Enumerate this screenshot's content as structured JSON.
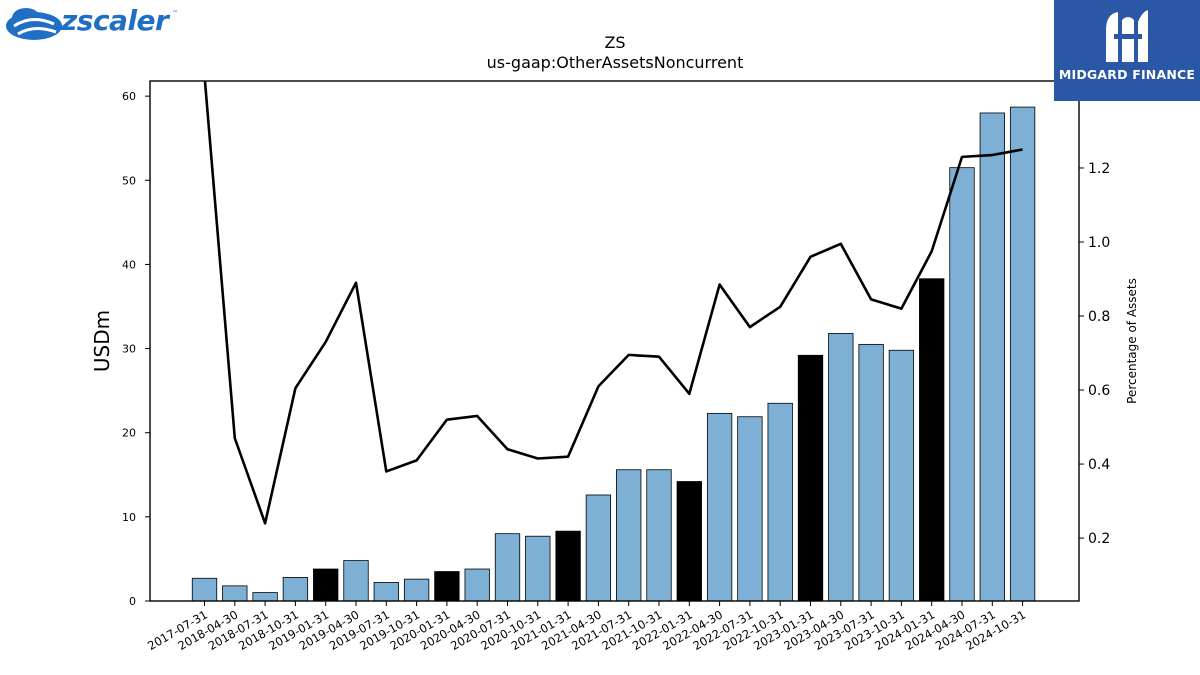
{
  "brand_left": {
    "name": "zscaler",
    "tm": "™",
    "icon": "zscaler-cloud-logo-icon",
    "color": "#1f6fc5"
  },
  "brand_right": {
    "name": "MIDGARD FINANCE",
    "icon": "midgard-finance-logo-icon",
    "background": "#2b57a7"
  },
  "chart_data": {
    "type": "bar",
    "title": "ZS",
    "subtitle": "us-gaap:OtherAssetsNoncurrent",
    "ylabel": "USDm",
    "y2label": "Percentage of Assets",
    "ylim": [
      0,
      61.8
    ],
    "y2lim": [
      0.03,
      1.435
    ],
    "yticks": [
      0,
      10,
      20,
      30,
      40,
      50,
      60
    ],
    "y2ticks": [
      0.2,
      0.4,
      0.6,
      0.8,
      1.0,
      1.2,
      1.4
    ],
    "y2tick_labels": [
      "0.2",
      "0.4",
      "0.6",
      "0.8",
      "1.0",
      "1.2",
      "1.4"
    ],
    "categories": [
      "2017-07-31",
      "2018-04-30",
      "2018-07-31",
      "2018-10-31",
      "2019-01-31",
      "2019-04-30",
      "2019-07-31",
      "2019-10-31",
      "2020-01-31",
      "2020-04-30",
      "2020-07-31",
      "2020-10-31",
      "2021-01-31",
      "2021-04-30",
      "2021-07-31",
      "2021-10-31",
      "2022-01-31",
      "2022-04-30",
      "2022-07-31",
      "2022-10-31",
      "2023-01-31",
      "2023-04-30",
      "2023-07-31",
      "2023-10-31",
      "2024-01-31",
      "2024-04-30",
      "2024-07-31",
      "2024-10-31"
    ],
    "series": [
      {
        "type": "bar",
        "values": [
          2.7,
          1.8,
          1.0,
          2.8,
          3.8,
          4.8,
          2.2,
          2.6,
          3.5,
          3.8,
          8.0,
          7.7,
          8.3,
          12.6,
          15.6,
          15.6,
          14.2,
          22.3,
          21.9,
          23.5,
          29.2,
          31.8,
          30.5,
          29.8,
          38.3,
          51.5,
          58.0,
          58.7
        ],
        "highlight": [
          false,
          false,
          false,
          false,
          true,
          false,
          false,
          false,
          true,
          false,
          false,
          false,
          true,
          false,
          false,
          false,
          true,
          false,
          false,
          false,
          true,
          false,
          false,
          false,
          true,
          false,
          false,
          false
        ]
      },
      {
        "type": "line",
        "axis": "right",
        "values": [
          1.45,
          0.47,
          0.24,
          0.605,
          0.73,
          0.89,
          0.38,
          0.41,
          0.52,
          0.53,
          0.44,
          0.415,
          0.42,
          0.61,
          0.695,
          0.69,
          0.59,
          0.885,
          0.77,
          0.825,
          0.96,
          0.995,
          0.845,
          0.82,
          0.975,
          1.23,
          1.235,
          1.25
        ]
      }
    ],
    "colors": {
      "bar": "#7eb0d5",
      "bar_highlight": "#000000",
      "line": "#000000",
      "axis": "#000000"
    },
    "grid": false,
    "legend": "none"
  }
}
